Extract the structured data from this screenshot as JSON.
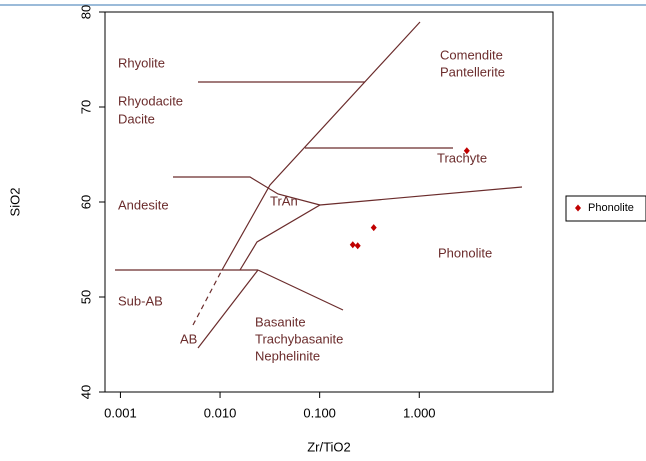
{
  "chart_data": {
    "type": "scatter",
    "xlabel": "Zr/TiO2",
    "ylabel": "SiO2",
    "xlog": true,
    "xlim": [
      0.0007,
      22
    ],
    "ylim": [
      40,
      80
    ],
    "xticks": [
      {
        "value": 0.001,
        "label": "0.001"
      },
      {
        "value": 0.01,
        "label": "0.010"
      },
      {
        "value": 0.1,
        "label": "0.100"
      },
      {
        "value": 1,
        "label": "1.000"
      }
    ],
    "yticks": [
      40,
      50,
      60,
      70,
      80
    ],
    "legend": "right",
    "series": [
      {
        "name": "Phonolite",
        "color": "#c00000",
        "x": [
          0.215,
          0.241,
          0.349,
          3.0
        ],
        "values": [
          55.5,
          55.4,
          57.3,
          65.4
        ]
      }
    ],
    "annotations": [
      "Rhyolite",
      "Rhyodacite",
      "Dacite",
      "Comendite",
      "Pantellerite",
      "Trachyte",
      "Andesite",
      "TrAn",
      "Phonolite",
      "Sub-AB",
      "AB",
      "Basanite",
      "Trachybasanite",
      "Nephelinite"
    ]
  }
}
